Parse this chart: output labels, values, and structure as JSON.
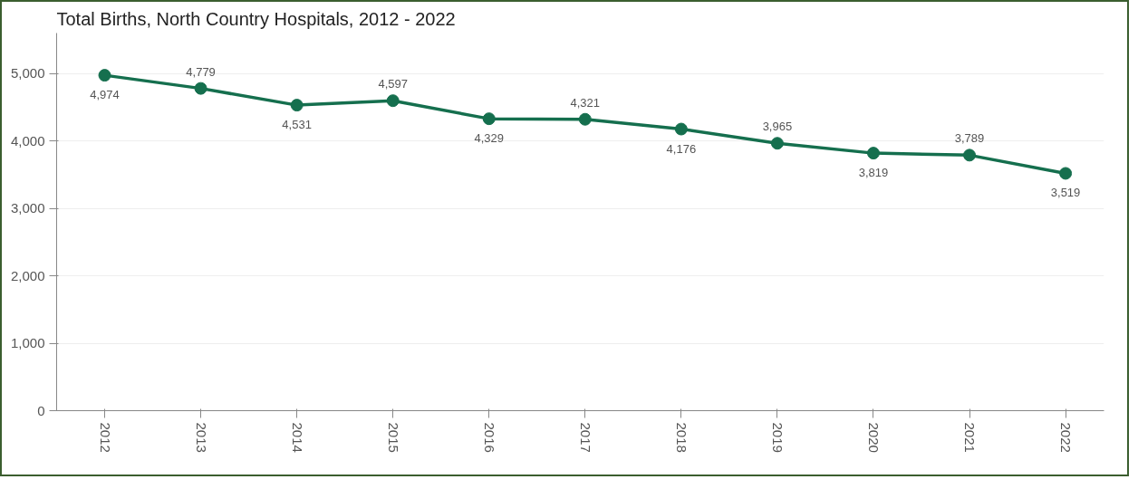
{
  "chart_data": {
    "type": "line",
    "title": "Total Births, North Country Hospitals, 2012 - 2022",
    "categories": [
      "2012",
      "2013",
      "2014",
      "2015",
      "2016",
      "2017",
      "2018",
      "2019",
      "2020",
      "2021",
      "2022"
    ],
    "series": [
      {
        "color": "#156f4e",
        "values": [
          4974,
          4779,
          4531,
          4597,
          4329,
          4321,
          4176,
          3965,
          3819,
          3789,
          3519
        ],
        "value_labels": [
          "4,974",
          "4,779",
          "4,531",
          "4,597",
          "4,329",
          "4,321",
          "4,176",
          "3,965",
          "3,819",
          "3,789",
          "3,519"
        ]
      }
    ],
    "ylim": [
      0,
      5600
    ],
    "yticks": [
      {
        "value": 0,
        "label": "0"
      },
      {
        "value": 1000,
        "label": "1,000"
      },
      {
        "value": 2000,
        "label": "2,000"
      },
      {
        "value": 3000,
        "label": "3,000"
      },
      {
        "value": 4000,
        "label": "4,000"
      },
      {
        "value": 5000,
        "label": "5,000"
      }
    ],
    "grid": "y",
    "marker": "circle",
    "line_style": "solid"
  }
}
